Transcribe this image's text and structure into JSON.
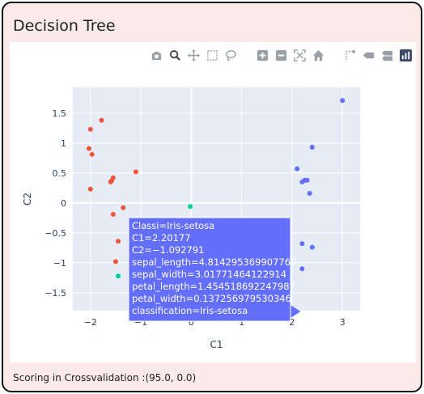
{
  "app": {
    "title": "Decision Tree",
    "footer": "Scoring in Crossvalidation :(95.0, 0.0)"
  },
  "modebar": {
    "buttons": [
      {
        "name": "camera-icon",
        "glyph": "camera"
      },
      {
        "name": "zoom-icon",
        "glyph": "zoom"
      },
      {
        "name": "pan-icon",
        "glyph": "pan"
      },
      {
        "name": "box-select-icon",
        "glyph": "box"
      },
      {
        "name": "lasso-select-icon",
        "glyph": "lasso"
      },
      {
        "name": "zoom-in-icon",
        "glyph": "plus"
      },
      {
        "name": "zoom-out-icon",
        "glyph": "minus"
      },
      {
        "name": "autoscale-icon",
        "glyph": "autoscale"
      },
      {
        "name": "reset-axes-icon",
        "glyph": "home"
      },
      {
        "name": "spike-lines-icon",
        "glyph": "spike"
      },
      {
        "name": "hover-closest-icon",
        "glyph": "tag"
      },
      {
        "name": "hover-compare-icon",
        "glyph": "tags"
      },
      {
        "name": "plotly-logo-icon",
        "glyph": "logo"
      }
    ]
  },
  "chart_data": {
    "type": "scatter",
    "xlabel": "C1",
    "ylabel": "C2",
    "xlim": [
      -2.35,
      3.35
    ],
    "ylim": [
      -1.8,
      1.93
    ],
    "xticks": [
      {
        "value": -2,
        "label": "−2"
      },
      {
        "value": -1,
        "label": "−1"
      },
      {
        "value": 0,
        "label": "0"
      },
      {
        "value": 1,
        "label": "1"
      },
      {
        "value": 2,
        "label": "2"
      },
      {
        "value": 3,
        "label": "3"
      }
    ],
    "yticks": [
      {
        "value": 1.5,
        "label": "1.5"
      },
      {
        "value": 1,
        "label": "1"
      },
      {
        "value": 0.5,
        "label": "0.5"
      },
      {
        "value": 0,
        "label": "0"
      },
      {
        "value": -0.5,
        "label": "−0.5"
      },
      {
        "value": -1,
        "label": "−1"
      },
      {
        "value": -1.5,
        "label": "−1.5"
      }
    ],
    "grid": true,
    "series": [
      {
        "color": "#ef553b",
        "points": [
          [
            -1.78,
            1.38
          ],
          [
            -2.0,
            1.23
          ],
          [
            -1.97,
            0.81
          ],
          [
            -2.03,
            0.91
          ],
          [
            -2.0,
            0.23
          ],
          [
            -1.1,
            0.52
          ],
          [
            -1.55,
            0.42
          ],
          [
            -1.58,
            0.37
          ],
          [
            -1.6,
            0.35
          ],
          [
            -1.35,
            -0.08
          ],
          [
            -1.55,
            -0.19
          ],
          [
            -1.45,
            -0.64
          ],
          [
            -1.5,
            -0.98
          ]
        ]
      },
      {
        "color": "#00cc96",
        "points": [
          [
            -0.02,
            -0.06
          ],
          [
            -1.45,
            -1.22
          ]
        ]
      },
      {
        "color": "#636efa",
        "points": [
          [
            3.0,
            1.71
          ],
          [
            2.4,
            0.93
          ],
          [
            2.1,
            0.57
          ],
          [
            2.25,
            0.38
          ],
          [
            2.2,
            0.35
          ],
          [
            2.3,
            0.38
          ],
          [
            2.35,
            0.16
          ],
          [
            2.2,
            -0.68
          ],
          [
            2.4,
            -0.74
          ],
          [
            2.2,
            -1.1
          ]
        ]
      }
    ],
    "tooltip": {
      "anchor": [
        2.20177,
        -1.092791
      ],
      "background": "#636efa",
      "lines": [
        "Classi=Iris-setosa",
        "C1=2.20177",
        "C2=−1.092791",
        "sepal_length=4.814295369907769",
        "sepal_width=3.01771464122914",
        "petal_length=1.454518692247987",
        "petal_width=0.137256979530346",
        "classification=Iris-setosa"
      ]
    }
  }
}
